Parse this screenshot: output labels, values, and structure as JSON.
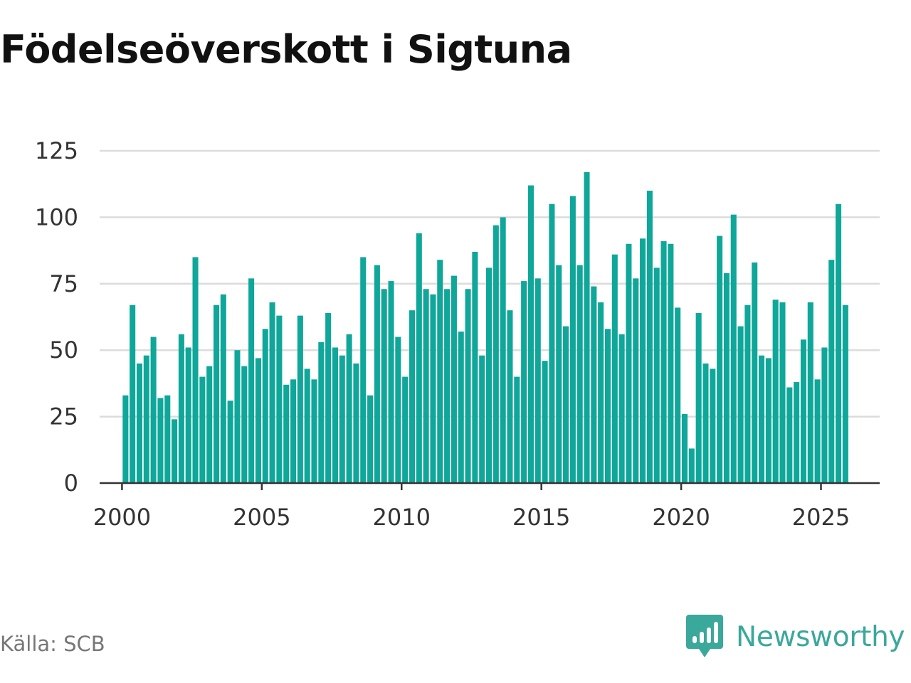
{
  "title": "Födelseöverskott i Sigtuna",
  "source": "Källa: SCB",
  "brand": {
    "name": "Newsworthy",
    "icon": "newsworthy-logo-icon",
    "color": "#3aa89a"
  },
  "chart_data": {
    "type": "bar",
    "title": "Födelseöverskott i Sigtuna",
    "xlabel": "",
    "ylabel": "",
    "ylim": [
      0,
      125
    ],
    "yticks": [
      0,
      25,
      50,
      75,
      100,
      125
    ],
    "xlim": [
      1999.2,
      2027.1
    ],
    "xticks": [
      2000,
      2005,
      2010,
      2015,
      2020,
      2025
    ],
    "grid": true,
    "bar_color": "#0fa79a",
    "start": 2000,
    "step": 0.25,
    "values": [
      33,
      67,
      45,
      48,
      55,
      32,
      33,
      24,
      56,
      51,
      85,
      40,
      44,
      67,
      71,
      31,
      50,
      44,
      77,
      47,
      58,
      68,
      63,
      37,
      39,
      63,
      43,
      39,
      53,
      64,
      51,
      48,
      56,
      45,
      85,
      33,
      82,
      73,
      76,
      55,
      40,
      65,
      94,
      73,
      71,
      84,
      73,
      78,
      57,
      73,
      87,
      48,
      81,
      97,
      100,
      65,
      40,
      76,
      112,
      77,
      46,
      105,
      82,
      59,
      108,
      82,
      117,
      74,
      68,
      58,
      86,
      56,
      90,
      77,
      92,
      110,
      81,
      91,
      90,
      66,
      26,
      13,
      64,
      45,
      43,
      93,
      79,
      101,
      59,
      67,
      83,
      48,
      47,
      69,
      68,
      36,
      38,
      54,
      68,
      39,
      51,
      84,
      105,
      67
    ]
  }
}
